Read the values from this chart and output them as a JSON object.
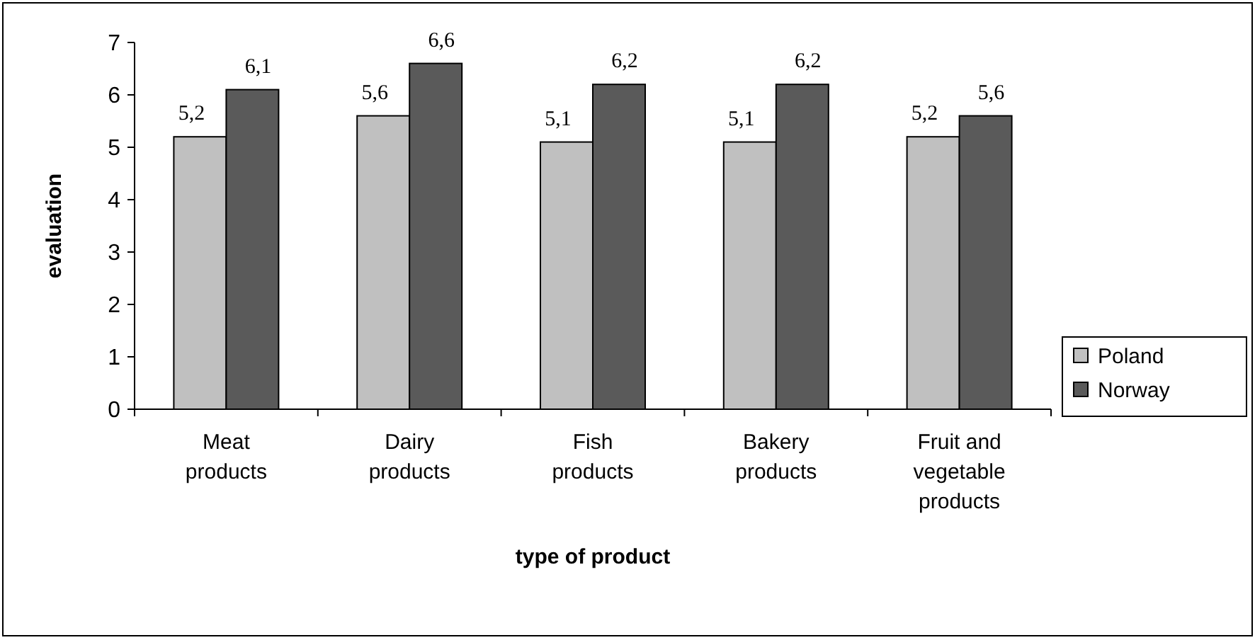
{
  "chart_data": {
    "type": "bar",
    "xlabel": "type of product",
    "ylabel": "evaluation",
    "categories": [
      "Meat products",
      "Dairy products",
      "Fish products",
      "Bakery products",
      "Fruit and vegetable products"
    ],
    "series": [
      {
        "name": "Poland",
        "color": "#c0c0c0",
        "values": [
          5.2,
          5.6,
          5.1,
          5.1,
          5.2
        ],
        "value_labels": [
          "5,2",
          "5,6",
          "5,1",
          "5,1",
          "5,2"
        ]
      },
      {
        "name": "Norway",
        "color": "#5a5a5a",
        "values": [
          6.1,
          6.6,
          6.2,
          6.2,
          5.6
        ],
        "value_labels": [
          "6,1",
          "6,6",
          "6,2",
          "6,2",
          "5,6"
        ]
      }
    ],
    "ylim": [
      0,
      7
    ],
    "yticks": [
      0,
      1,
      2,
      3,
      4,
      5,
      6,
      7
    ],
    "grid": false,
    "legend": "right"
  }
}
